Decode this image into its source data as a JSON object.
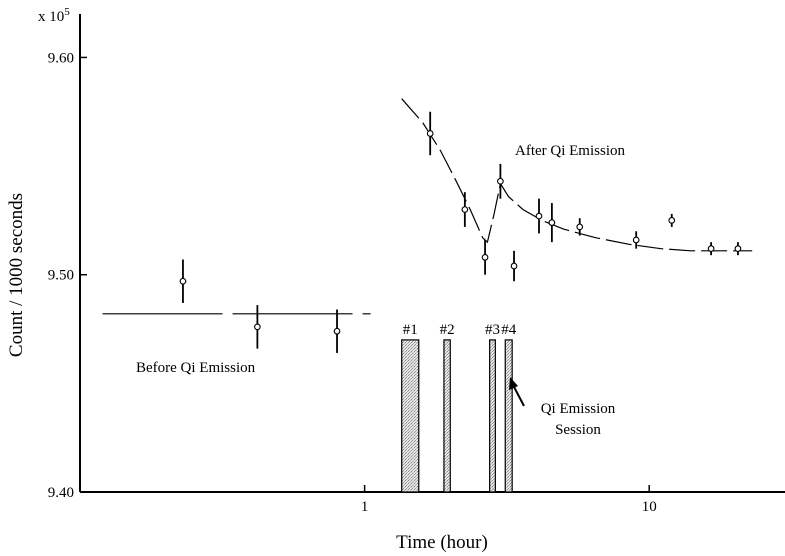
{
  "chart_data": {
    "type": "scatter",
    "title": "",
    "xlabel": "Time (hour)",
    "ylabel": "Count / 1000 seconds",
    "y_multiplier": "x 10",
    "y_multiplier_exp": "5",
    "x_scale": "log",
    "xlim": [
      0.1,
      30
    ],
    "ylim": [
      9.4,
      9.62
    ],
    "x_ticks": [
      1,
      10
    ],
    "x_tick_labels": [
      "1",
      "10"
    ],
    "y_ticks": [
      9.4,
      9.5,
      9.6
    ],
    "y_tick_labels": [
      "9.40",
      "9.50",
      "9.60"
    ],
    "grid": false,
    "series": [
      {
        "points": [
          {
            "x": 0.23,
            "y": 9.497,
            "err": 0.01
          },
          {
            "x": 0.42,
            "y": 9.476,
            "err": 0.01
          },
          {
            "x": 0.8,
            "y": 9.474,
            "err": 0.01
          },
          {
            "x": 1.7,
            "y": 9.565,
            "err": 0.01
          },
          {
            "x": 2.25,
            "y": 9.53,
            "err": 0.008
          },
          {
            "x": 2.65,
            "y": 9.508,
            "err": 0.008
          },
          {
            "x": 3.0,
            "y": 9.543,
            "err": 0.008
          },
          {
            "x": 3.35,
            "y": 9.504,
            "err": 0.007
          },
          {
            "x": 4.1,
            "y": 9.527,
            "err": 0.008
          },
          {
            "x": 4.55,
            "y": 9.524,
            "err": 0.009
          },
          {
            "x": 5.7,
            "y": 9.522,
            "err": 0.004
          },
          {
            "x": 9.0,
            "y": 9.516,
            "err": 0.004
          },
          {
            "x": 12.0,
            "y": 9.525,
            "err": 0.003
          },
          {
            "x": 16.5,
            "y": 9.512,
            "err": 0.003
          },
          {
            "x": 20.5,
            "y": 9.512,
            "err": 0.003
          }
        ]
      }
    ],
    "baseline": {
      "y": 9.482,
      "x_start": 0.12,
      "x_end": 1.05
    },
    "after_trend": {
      "x": [
        1.35,
        1.6,
        1.85,
        2.1,
        2.35,
        2.6,
        2.7,
        2.85,
        3.0,
        3.2,
        3.6,
        4.2,
        5.0,
        6.5,
        8.5,
        11.0,
        14.0,
        18.0,
        23.0
      ],
      "y": [
        9.581,
        9.57,
        9.557,
        9.543,
        9.53,
        9.517,
        9.515,
        9.528,
        9.542,
        9.536,
        9.53,
        9.525,
        9.521,
        9.517,
        9.514,
        9.512,
        9.511,
        9.511,
        9.511
      ]
    },
    "sessions": [
      {
        "label": "#1",
        "x_start": 1.35,
        "x_end": 1.55
      },
      {
        "label": "#2",
        "x_start": 1.9,
        "x_end": 2.0
      },
      {
        "label": "#3",
        "x_start": 2.75,
        "x_end": 2.88
      },
      {
        "label": "#4",
        "x_start": 3.12,
        "x_end": 3.3
      }
    ],
    "session_top_y": 9.47,
    "annotations": {
      "before": "Before Qi Emission",
      "after": "After Qi Emission",
      "session_line1": "Qi Emission",
      "session_line2": "Session"
    }
  }
}
